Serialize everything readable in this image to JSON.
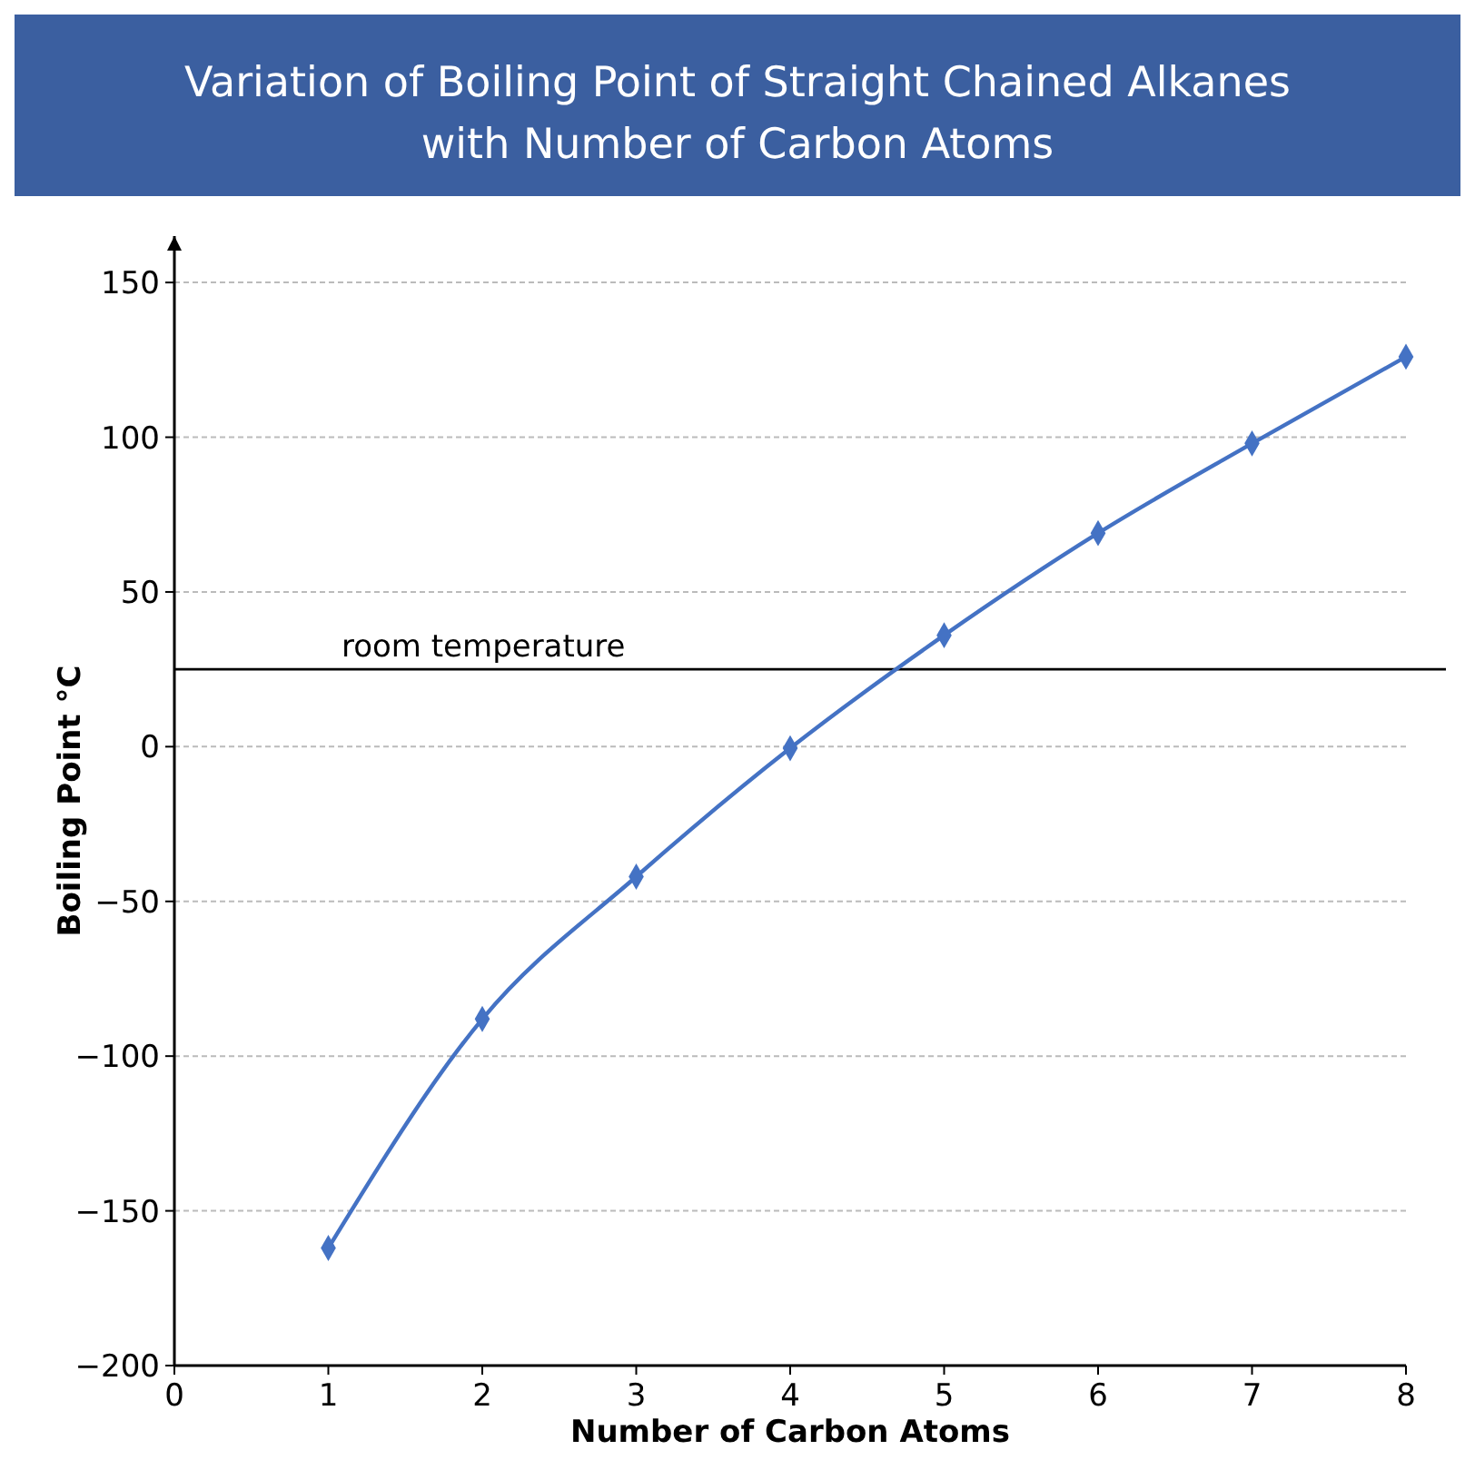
{
  "chart_data": {
    "type": "line",
    "title": "Variation of Boiling Point of Straight Chained Alkanes with Number of Carbon Atoms",
    "xlabel": "Number of Carbon Atoms",
    "ylabel": "Boiling Point °C",
    "x": [
      1,
      2,
      3,
      4,
      5,
      6,
      7,
      8
    ],
    "series": [
      {
        "color": "#4472c4",
        "values": [
          -162,
          -88,
          -42,
          -0.5,
          36,
          69,
          98,
          126
        ]
      }
    ],
    "xlim": [
      0,
      8
    ],
    "xticks": [
      0,
      1,
      2,
      3,
      4,
      5,
      6,
      7,
      8
    ],
    "ylim": [
      -200,
      165
    ],
    "yticks": [
      -200,
      -150,
      -100,
      -50,
      0,
      50,
      100,
      150
    ],
    "grid": "y",
    "marker": "diamond",
    "line_style": "solid",
    "ref_lines": [
      {
        "axis": "y",
        "value": 25,
        "label": "room temperature",
        "color": "#000000"
      }
    ]
  }
}
